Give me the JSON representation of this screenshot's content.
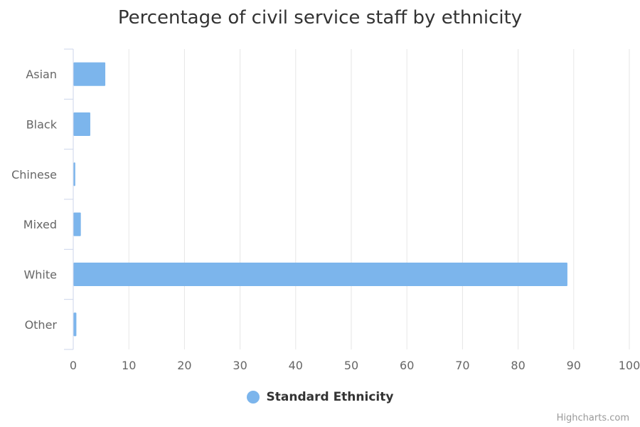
{
  "chart_data": {
    "type": "bar",
    "orientation": "horizontal",
    "title": "Percentage of civil service staff by ethnicity",
    "categories": [
      "Asian",
      "Black",
      "Chinese",
      "Mixed",
      "White",
      "Other"
    ],
    "series": [
      {
        "name": "Standard Ethnicity",
        "color": "#7cb5ec",
        "values": [
          5.7,
          3.0,
          0.3,
          1.3,
          88.8,
          0.5
        ]
      }
    ],
    "xlim": [
      0,
      100
    ],
    "ticks": [
      0,
      10,
      20,
      30,
      40,
      50,
      60,
      70,
      80,
      90,
      100
    ],
    "grid": true,
    "legend": "bottom-center"
  },
  "credits": "Highcharts.com"
}
